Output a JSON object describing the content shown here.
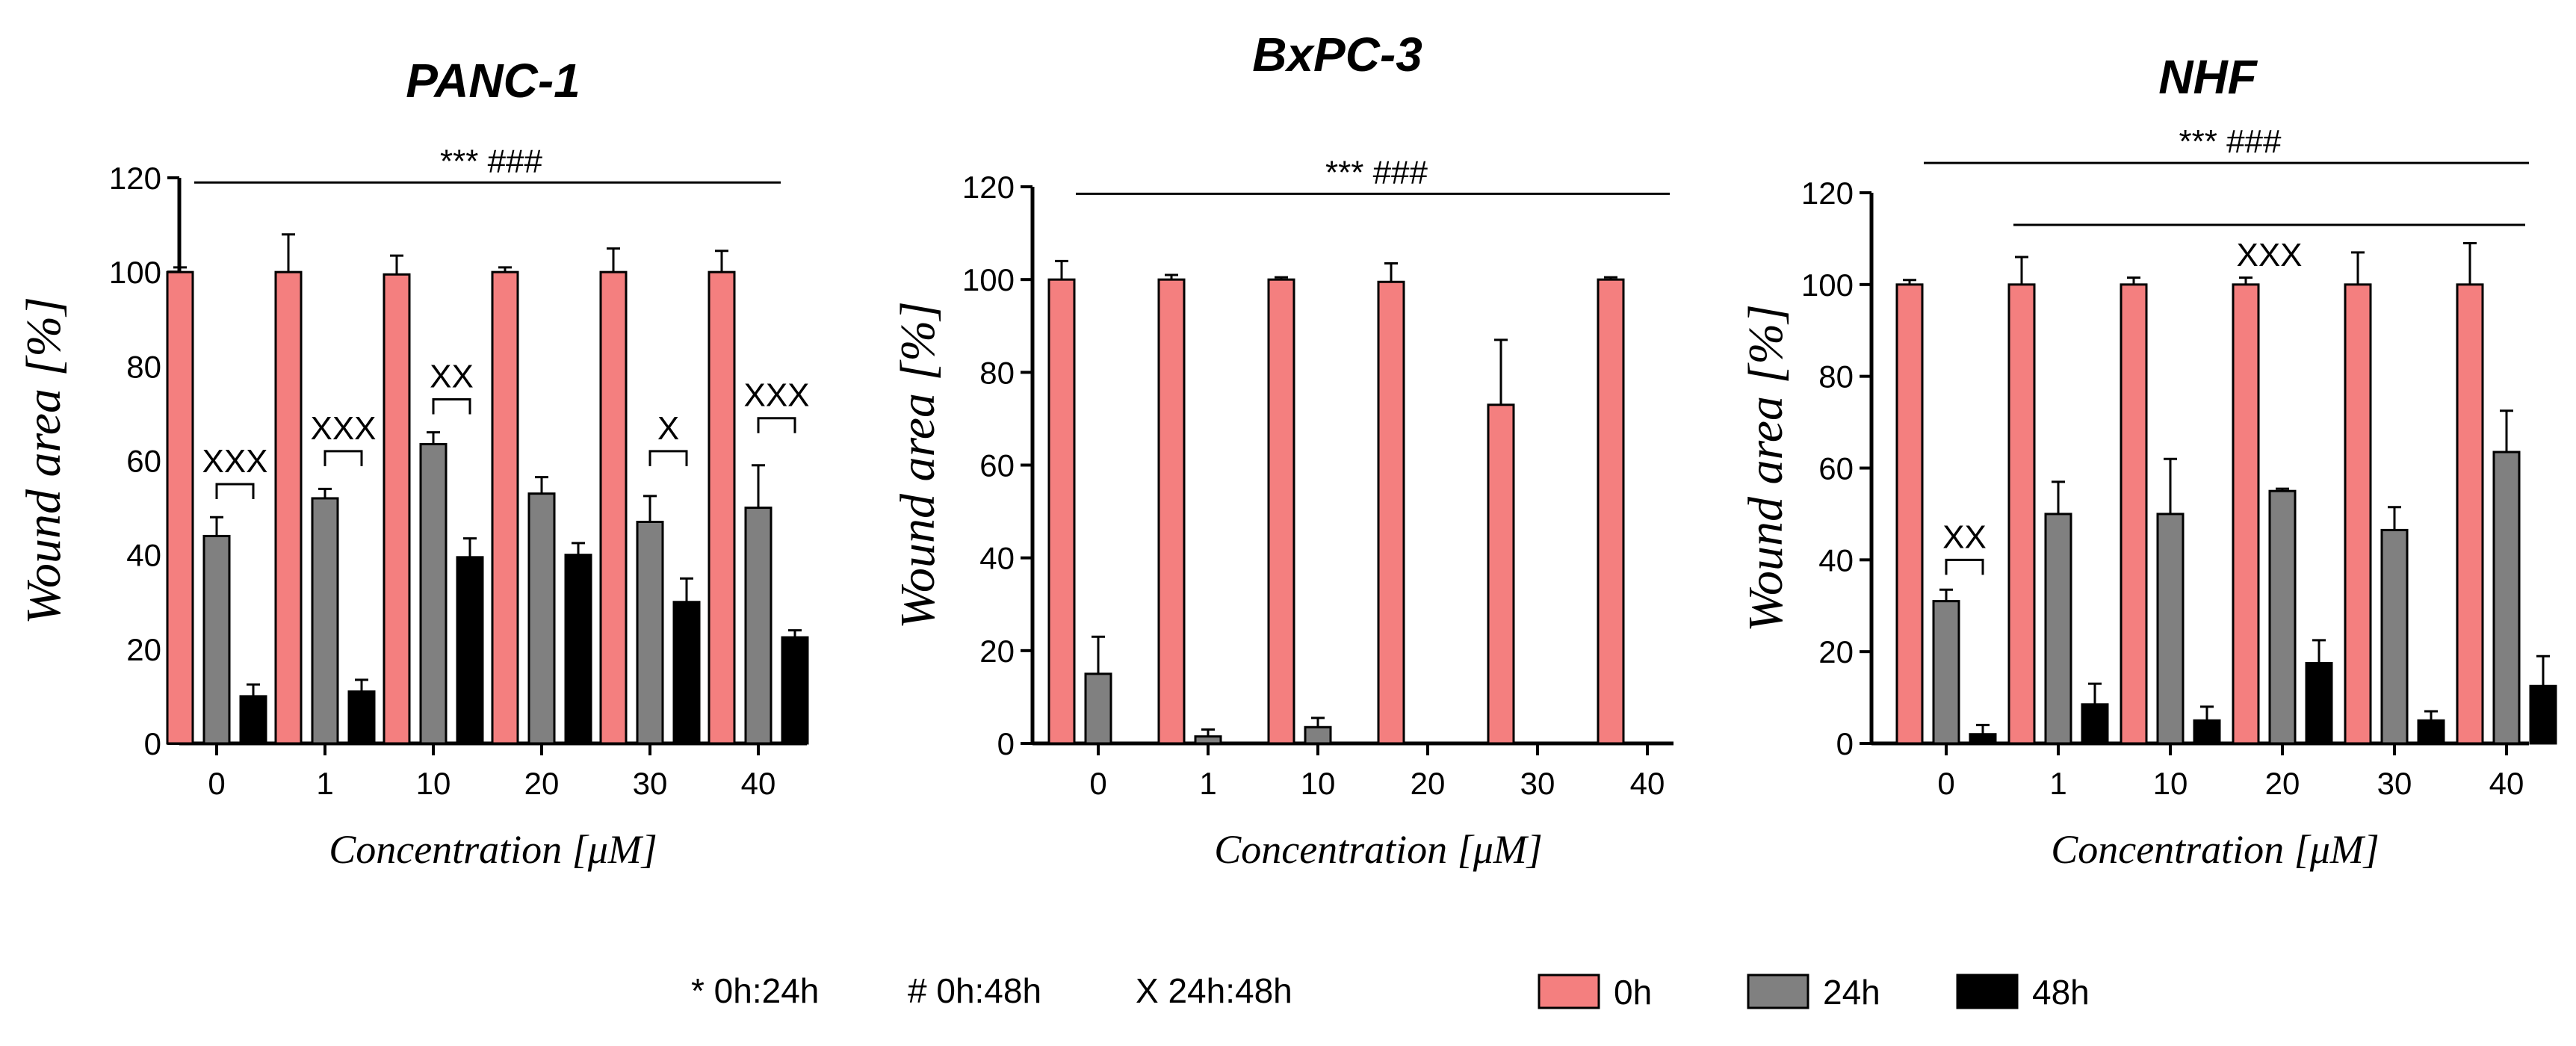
{
  "colors": {
    "0h": "#f47f7f",
    "24h": "#808080",
    "48h": "#000000",
    "axis": "#000000"
  },
  "legend": {
    "significance": [
      "* 0h:24h",
      "# 0h:48h",
      "X 24h:48h"
    ],
    "series": [
      "0h",
      "24h",
      "48h"
    ]
  },
  "chart_data": [
    {
      "type": "bar",
      "title": "PANC-1",
      "xlabel": "Concentration [μM]",
      "ylabel": "Wound area [%]",
      "ylim": [
        0,
        120
      ],
      "yticks": [
        0,
        20,
        40,
        60,
        80,
        100,
        120
      ],
      "categories": [
        "0",
        "1",
        "10",
        "20",
        "30",
        "40"
      ],
      "series": [
        {
          "name": "0h",
          "values": [
            100,
            100,
            99.5,
            100,
            100,
            100
          ],
          "errors": [
            1,
            8,
            4,
            1,
            5,
            4.5
          ]
        },
        {
          "name": "24h",
          "values": [
            44,
            52,
            63.5,
            53,
            47,
            50
          ],
          "errors": [
            4,
            2,
            2.5,
            3.5,
            5.5,
            9
          ]
        },
        {
          "name": "48h",
          "values": [
            10,
            11,
            39.5,
            40,
            30,
            22.5
          ],
          "errors": [
            2.5,
            2.5,
            4,
            2.5,
            5,
            1.5
          ]
        }
      ],
      "top_bar": {
        "label": "*** ###",
        "from": "0",
        "to": "40",
        "y": 119
      },
      "brackets": [
        {
          "category": "0",
          "label": "XXX",
          "y": 55
        },
        {
          "category": "1",
          "label": "XXX",
          "y": 62
        },
        {
          "category": "10",
          "label": "XX",
          "y": 73
        },
        {
          "category": "30",
          "label": "X",
          "y": 62
        },
        {
          "category": "40",
          "label": "XXX",
          "y": 69
        }
      ]
    },
    {
      "type": "bar",
      "title": "BxPC-3",
      "xlabel": "Concentration [μM]",
      "ylabel": "Wound area [%]",
      "ylim": [
        0,
        120
      ],
      "yticks": [
        0,
        20,
        40,
        60,
        80,
        100,
        120
      ],
      "categories": [
        "0",
        "1",
        "10",
        "20",
        "30",
        "40"
      ],
      "series": [
        {
          "name": "0h",
          "values": [
            100,
            100,
            100,
            99.5,
            73,
            100
          ],
          "errors": [
            4,
            1,
            0.5,
            4,
            14,
            0.5
          ]
        },
        {
          "name": "24h",
          "values": [
            15,
            1.5,
            3.5,
            0,
            0,
            0
          ],
          "errors": [
            8,
            1.5,
            2,
            0,
            0,
            0
          ]
        },
        {
          "name": "48h",
          "values": [
            0,
            0,
            0,
            0,
            0,
            0
          ],
          "errors": [
            0,
            0,
            0,
            0,
            0,
            0
          ]
        }
      ],
      "top_bar": {
        "label": "*** ###",
        "from": "0",
        "to": "40",
        "y": 118.5
      },
      "brackets": []
    },
    {
      "type": "bar",
      "title": "NHF",
      "xlabel": "Concentration [μM]",
      "ylabel": "Wound area [%]",
      "ylim": [
        0,
        120
      ],
      "yticks": [
        0,
        20,
        40,
        60,
        80,
        100,
        120
      ],
      "categories": [
        "0",
        "1",
        "10",
        "20",
        "30",
        "40"
      ],
      "series": [
        {
          "name": "0h",
          "values": [
            100,
            100,
            100,
            100,
            100,
            100
          ],
          "errors": [
            1,
            6,
            1.5,
            1.5,
            7,
            9
          ]
        },
        {
          "name": "24h",
          "values": [
            31,
            50,
            50,
            55,
            46.5,
            63.5
          ],
          "errors": [
            2.5,
            7,
            12,
            0.5,
            5,
            9
          ]
        },
        {
          "name": "48h",
          "values": [
            2,
            8.5,
            5,
            17.5,
            5,
            12.5
          ],
          "errors": [
            2,
            4.5,
            3,
            5,
            2,
            6.5
          ]
        }
      ],
      "top_bar": {
        "label": "*** ###",
        "from": "0",
        "to": "40",
        "y": 126.5
      },
      "line2": {
        "label": "XXX",
        "from": "1",
        "to": "40",
        "y": 113
      },
      "brackets": [
        {
          "category": "0",
          "label": "XX",
          "y": 40
        }
      ]
    }
  ]
}
